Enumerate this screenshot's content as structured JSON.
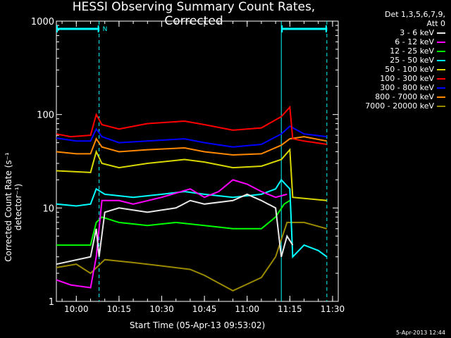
{
  "title": "HESSI Observing Summary Count Rates, Corrected",
  "legend": {
    "detectors": "Det 1,3,5,6,7,9,",
    "attenuator": "Att 0"
  },
  "timestamp": "5-Apr-2013 12:44",
  "chart_data": {
    "type": "line",
    "title": "HESSI Observing Summary Count Rates, Corrected",
    "xlabel": "Start Time (05-Apr-13 09:53:02)",
    "ylabel": "Corrected Count Rate (s⁻¹ detector⁻¹)",
    "yscale": "log",
    "ylim": [
      1,
      1000
    ],
    "xlim": [
      "09:53",
      "11:32"
    ],
    "x_ticks": [
      "10:00",
      "10:15",
      "10:30",
      "10:45",
      "11:00",
      "11:15",
      "11:30"
    ],
    "y_ticks": [
      "1",
      "10",
      "100",
      "1000"
    ],
    "annotations": [
      {
        "type": "interval",
        "from": "09:53",
        "to": "10:08",
        "label": "N",
        "color": "#00ffff"
      },
      {
        "type": "vline",
        "x": "10:08",
        "style": "dashed",
        "color": "#00ffff"
      },
      {
        "type": "vline",
        "x": "11:12",
        "style": "solid",
        "color": "#00ffff"
      },
      {
        "type": "interval",
        "from": "11:12",
        "to": "11:28",
        "label": "",
        "color": "#00ffff"
      },
      {
        "type": "vline",
        "x": "11:28",
        "style": "dashed",
        "color": "#00ffff"
      }
    ],
    "series": [
      {
        "name": "3 - 6 keV",
        "color": "#e8e8e8",
        "points": [
          [
            "09:53",
            2.5
          ],
          [
            "10:05",
            3
          ],
          [
            "10:07",
            6
          ],
          [
            "10:08",
            3
          ],
          [
            "10:10",
            9
          ],
          [
            "10:15",
            10
          ],
          [
            "10:25",
            9
          ],
          [
            "10:35",
            10
          ],
          [
            "10:40",
            12
          ],
          [
            "10:45",
            11
          ],
          [
            "10:55",
            12
          ],
          [
            "11:00",
            14
          ],
          [
            "11:05",
            12
          ],
          [
            "11:10",
            10
          ],
          [
            "11:12",
            3
          ],
          [
            "11:14",
            5
          ],
          [
            "11:16",
            4
          ]
        ]
      },
      {
        "name": "6 - 12 keV",
        "color": "#ff00ff",
        "points": [
          [
            "09:53",
            1.7
          ],
          [
            "09:58",
            1.5
          ],
          [
            "10:05",
            1.4
          ],
          [
            "10:07",
            3
          ],
          [
            "10:09",
            12
          ],
          [
            "10:15",
            12
          ],
          [
            "10:20",
            11
          ],
          [
            "10:30",
            13
          ],
          [
            "10:40",
            16
          ],
          [
            "10:45",
            13
          ],
          [
            "10:50",
            15
          ],
          [
            "10:55",
            20
          ],
          [
            "11:00",
            18
          ],
          [
            "11:05",
            15
          ],
          [
            "11:10",
            13
          ],
          [
            "11:14",
            14
          ]
        ]
      },
      {
        "name": "12 - 25 keV",
        "color": "#00ff00",
        "points": [
          [
            "09:53",
            4
          ],
          [
            "10:05",
            4
          ],
          [
            "10:07",
            7
          ],
          [
            "10:09",
            8
          ],
          [
            "10:15",
            7
          ],
          [
            "10:25",
            6.5
          ],
          [
            "10:35",
            7
          ],
          [
            "10:45",
            6.5
          ],
          [
            "10:55",
            6
          ],
          [
            "11:05",
            6
          ],
          [
            "11:10",
            8
          ],
          [
            "11:13",
            11
          ],
          [
            "11:15",
            12
          ]
        ]
      },
      {
        "name": "25 - 50 keV",
        "color": "#00ffff",
        "points": [
          [
            "09:53",
            11
          ],
          [
            "10:00",
            10.5
          ],
          [
            "10:05",
            11
          ],
          [
            "10:07",
            16
          ],
          [
            "10:10",
            14
          ],
          [
            "10:20",
            13
          ],
          [
            "10:30",
            14
          ],
          [
            "10:38",
            15
          ],
          [
            "10:45",
            14
          ],
          [
            "10:55",
            13
          ],
          [
            "11:05",
            14
          ],
          [
            "11:10",
            16
          ],
          [
            "11:12",
            20
          ],
          [
            "11:15",
            16
          ],
          [
            "11:16",
            3
          ],
          [
            "11:20",
            4
          ],
          [
            "11:25",
            3.5
          ],
          [
            "11:28",
            3
          ]
        ]
      },
      {
        "name": "50 - 100 keV",
        "color": "#d8d800",
        "points": [
          [
            "09:53",
            25
          ],
          [
            "10:05",
            24
          ],
          [
            "10:07",
            40
          ],
          [
            "10:09",
            30
          ],
          [
            "10:15",
            27
          ],
          [
            "10:25",
            30
          ],
          [
            "10:38",
            33
          ],
          [
            "10:45",
            31
          ],
          [
            "10:55",
            27
          ],
          [
            "11:05",
            28
          ],
          [
            "11:12",
            33
          ],
          [
            "11:15",
            42
          ],
          [
            "11:16",
            13
          ],
          [
            "11:28",
            12
          ]
        ]
      },
      {
        "name": "100 - 300 keV",
        "color": "#ff0000",
        "points": [
          [
            "09:53",
            62
          ],
          [
            "09:58",
            58
          ],
          [
            "10:05",
            60
          ],
          [
            "10:07",
            100
          ],
          [
            "10:09",
            78
          ],
          [
            "10:15",
            70
          ],
          [
            "10:25",
            80
          ],
          [
            "10:38",
            85
          ],
          [
            "10:45",
            78
          ],
          [
            "10:55",
            68
          ],
          [
            "11:05",
            72
          ],
          [
            "11:12",
            95
          ],
          [
            "11:15",
            120
          ],
          [
            "11:16",
            55
          ],
          [
            "11:20",
            52
          ],
          [
            "11:28",
            48
          ]
        ]
      },
      {
        "name": "300 - 800 keV",
        "color": "#0000ff",
        "points": [
          [
            "09:53",
            56
          ],
          [
            "10:00",
            52
          ],
          [
            "10:05",
            52
          ],
          [
            "10:07",
            70
          ],
          [
            "10:09",
            58
          ],
          [
            "10:15",
            50
          ],
          [
            "10:25",
            52
          ],
          [
            "10:38",
            55
          ],
          [
            "10:45",
            50
          ],
          [
            "10:55",
            45
          ],
          [
            "11:05",
            48
          ],
          [
            "11:12",
            62
          ],
          [
            "11:15",
            75
          ],
          [
            "11:20",
            62
          ],
          [
            "11:28",
            58
          ]
        ]
      },
      {
        "name": "800 - 7000 keV",
        "color": "#ff8800",
        "points": [
          [
            "09:53",
            40
          ],
          [
            "10:00",
            38
          ],
          [
            "10:05",
            38
          ],
          [
            "10:07",
            55
          ],
          [
            "10:09",
            45
          ],
          [
            "10:15",
            40
          ],
          [
            "10:25",
            42
          ],
          [
            "10:38",
            44
          ],
          [
            "10:45",
            40
          ],
          [
            "10:55",
            37
          ],
          [
            "11:05",
            38
          ],
          [
            "11:12",
            47
          ],
          [
            "11:15",
            55
          ],
          [
            "11:20",
            58
          ],
          [
            "11:28",
            52
          ]
        ]
      },
      {
        "name": "7000 - 20000 keV",
        "color": "#9a8a00",
        "points": [
          [
            "09:53",
            2.3
          ],
          [
            "10:00",
            2.5
          ],
          [
            "10:05",
            2
          ],
          [
            "10:10",
            2.8
          ],
          [
            "10:20",
            2.6
          ],
          [
            "10:30",
            2.4
          ],
          [
            "10:40",
            2.2
          ],
          [
            "10:45",
            1.9
          ],
          [
            "10:55",
            1.3
          ],
          [
            "11:05",
            1.8
          ],
          [
            "11:10",
            3
          ],
          [
            "11:14",
            7
          ],
          [
            "11:20",
            7
          ],
          [
            "11:28",
            6
          ]
        ]
      }
    ]
  }
}
